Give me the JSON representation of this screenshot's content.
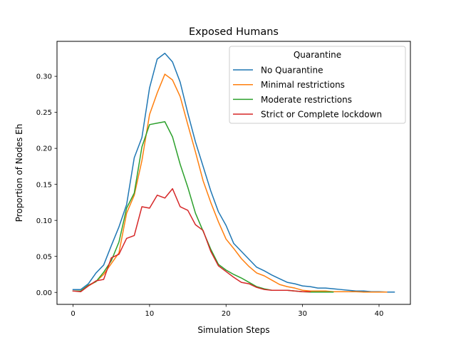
{
  "chart_data": {
    "type": "line",
    "title": "Exposed Humans",
    "xlabel": "Simulation Steps",
    "ylabel": "Proportion of Nodes Eh",
    "xlim": [
      -2.1,
      44.1
    ],
    "ylim": [
      -0.0166,
      0.3486
    ],
    "xticks": [
      0,
      10,
      20,
      30,
      40
    ],
    "yticks": [
      0.0,
      0.05,
      0.1,
      0.15,
      0.2,
      0.25,
      0.3
    ],
    "xtick_labels": [
      "0",
      "10",
      "20",
      "30",
      "40"
    ],
    "ytick_labels": [
      "0.00",
      "0.05",
      "0.10",
      "0.15",
      "0.20",
      "0.25",
      "0.30"
    ],
    "grid": false,
    "legend": {
      "title": "Quarantine",
      "position": "top-right"
    },
    "series": [
      {
        "name": "No Quarantine",
        "color": "#1f77b4",
        "x": [
          0,
          1,
          2,
          3,
          4,
          5,
          6,
          7,
          8,
          9,
          10,
          11,
          12,
          13,
          14,
          15,
          16,
          17,
          18,
          19,
          20,
          21,
          22,
          23,
          24,
          25,
          26,
          27,
          28,
          29,
          30,
          31,
          32,
          33,
          34,
          35,
          36,
          37,
          38,
          39,
          40,
          41,
          42
        ],
        "y": [
          0.004,
          0.004,
          0.012,
          0.027,
          0.038,
          0.065,
          0.091,
          0.122,
          0.187,
          0.215,
          0.284,
          0.324,
          0.332,
          0.32,
          0.292,
          0.249,
          0.209,
          0.175,
          0.141,
          0.112,
          0.093,
          0.068,
          0.057,
          0.046,
          0.035,
          0.03,
          0.024,
          0.019,
          0.014,
          0.012,
          0.009,
          0.008,
          0.006,
          0.006,
          0.005,
          0.004,
          0.003,
          0.002,
          0.002,
          0.001,
          0.001,
          0.0005,
          0.0005
        ]
      },
      {
        "name": "Minimal restrictions",
        "color": "#ff7f0e",
        "x": [
          0,
          1,
          2,
          3,
          4,
          5,
          6,
          7,
          8,
          9,
          10,
          11,
          12,
          13,
          14,
          15,
          16,
          17,
          18,
          19,
          20,
          21,
          22,
          23,
          24,
          25,
          26,
          27,
          28,
          29,
          30,
          31,
          32,
          33,
          34,
          35,
          36,
          37,
          38,
          39,
          40,
          41
        ],
        "y": [
          0.002,
          0.002,
          0.009,
          0.015,
          0.025,
          0.04,
          0.055,
          0.11,
          0.135,
          0.183,
          0.247,
          0.277,
          0.303,
          0.295,
          0.272,
          0.233,
          0.195,
          0.155,
          0.125,
          0.098,
          0.074,
          0.061,
          0.047,
          0.036,
          0.027,
          0.023,
          0.017,
          0.011,
          0.008,
          0.006,
          0.003,
          0.002,
          0.002,
          0.002,
          0.001,
          0.001,
          0.001,
          0.001,
          0.0005,
          0.0005,
          0.0005,
          0.0005
        ]
      },
      {
        "name": "Moderate restrictions",
        "color": "#2ca02c",
        "x": [
          0,
          1,
          2,
          3,
          4,
          5,
          6,
          7,
          8,
          9,
          10,
          11,
          12,
          13,
          14,
          15,
          16,
          17,
          18,
          19,
          20,
          21,
          22,
          23,
          24,
          25,
          26,
          27,
          28,
          29,
          30,
          31,
          32,
          33,
          34
        ],
        "y": [
          0.002,
          0.002,
          0.01,
          0.015,
          0.028,
          0.044,
          0.07,
          0.117,
          0.138,
          0.202,
          0.233,
          0.235,
          0.237,
          0.216,
          0.178,
          0.146,
          0.11,
          0.085,
          0.06,
          0.039,
          0.031,
          0.025,
          0.02,
          0.014,
          0.008,
          0.005,
          0.003,
          0.003,
          0.003,
          0.002,
          0.001,
          0.0005,
          0.0005,
          0.0005,
          0.0005
        ]
      },
      {
        "name": "Strict or Complete lockdown",
        "color": "#d62728",
        "x": [
          0,
          1,
          2,
          3,
          4,
          5,
          6,
          7,
          8,
          9,
          10,
          11,
          12,
          13,
          14,
          15,
          16,
          17,
          18,
          19,
          20,
          21,
          22,
          23,
          24,
          25,
          26,
          27,
          28,
          29,
          30,
          31
        ],
        "y": [
          0.002,
          0.001,
          0.009,
          0.016,
          0.018,
          0.048,
          0.053,
          0.075,
          0.079,
          0.119,
          0.117,
          0.135,
          0.131,
          0.144,
          0.119,
          0.114,
          0.094,
          0.086,
          0.057,
          0.037,
          0.029,
          0.021,
          0.014,
          0.012,
          0.007,
          0.004,
          0.003,
          0.003,
          0.003,
          0.002,
          0.001,
          0.001
        ]
      }
    ]
  }
}
